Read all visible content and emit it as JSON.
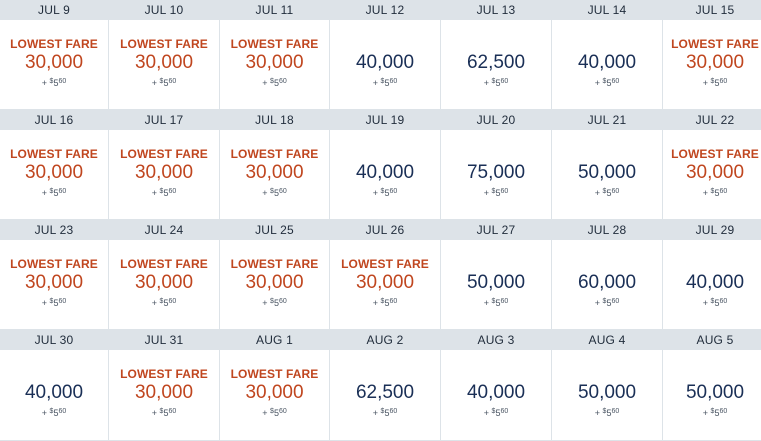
{
  "calendar": {
    "days": [
      {
        "date": "JUL 9",
        "tag": "LOWEST FARE",
        "miles": "30,000",
        "plus": "+",
        "dollar": "$",
        "fee_whole": "5",
        "fee_cents": "60",
        "lowest": true
      },
      {
        "date": "JUL 10",
        "tag": "LOWEST FARE",
        "miles": "30,000",
        "plus": "+",
        "dollar": "$",
        "fee_whole": "5",
        "fee_cents": "60",
        "lowest": true
      },
      {
        "date": "JUL 11",
        "tag": "LOWEST FARE",
        "miles": "30,000",
        "plus": "+",
        "dollar": "$",
        "fee_whole": "5",
        "fee_cents": "60",
        "lowest": true
      },
      {
        "date": "JUL 12",
        "tag": "",
        "miles": "40,000",
        "plus": "+",
        "dollar": "$",
        "fee_whole": "5",
        "fee_cents": "60",
        "lowest": false
      },
      {
        "date": "JUL 13",
        "tag": "",
        "miles": "62,500",
        "plus": "+",
        "dollar": "$",
        "fee_whole": "5",
        "fee_cents": "60",
        "lowest": false
      },
      {
        "date": "JUL 14",
        "tag": "",
        "miles": "40,000",
        "plus": "+",
        "dollar": "$",
        "fee_whole": "5",
        "fee_cents": "60",
        "lowest": false
      },
      {
        "date": "JUL 15",
        "tag": "LOWEST FARE",
        "miles": "30,000",
        "plus": "+",
        "dollar": "$",
        "fee_whole": "5",
        "fee_cents": "60",
        "lowest": true
      },
      {
        "date": "JUL 16",
        "tag": "LOWEST FARE",
        "miles": "30,000",
        "plus": "+",
        "dollar": "$",
        "fee_whole": "5",
        "fee_cents": "60",
        "lowest": true
      },
      {
        "date": "JUL 17",
        "tag": "LOWEST FARE",
        "miles": "30,000",
        "plus": "+",
        "dollar": "$",
        "fee_whole": "5",
        "fee_cents": "60",
        "lowest": true
      },
      {
        "date": "JUL 18",
        "tag": "LOWEST FARE",
        "miles": "30,000",
        "plus": "+",
        "dollar": "$",
        "fee_whole": "5",
        "fee_cents": "60",
        "lowest": true
      },
      {
        "date": "JUL 19",
        "tag": "",
        "miles": "40,000",
        "plus": "+",
        "dollar": "$",
        "fee_whole": "5",
        "fee_cents": "60",
        "lowest": false
      },
      {
        "date": "JUL 20",
        "tag": "",
        "miles": "75,000",
        "plus": "+",
        "dollar": "$",
        "fee_whole": "5",
        "fee_cents": "60",
        "lowest": false
      },
      {
        "date": "JUL 21",
        "tag": "",
        "miles": "50,000",
        "plus": "+",
        "dollar": "$",
        "fee_whole": "5",
        "fee_cents": "60",
        "lowest": false
      },
      {
        "date": "JUL 22",
        "tag": "LOWEST FARE",
        "miles": "30,000",
        "plus": "+",
        "dollar": "$",
        "fee_whole": "5",
        "fee_cents": "60",
        "lowest": true
      },
      {
        "date": "JUL 23",
        "tag": "LOWEST FARE",
        "miles": "30,000",
        "plus": "+",
        "dollar": "$",
        "fee_whole": "5",
        "fee_cents": "60",
        "lowest": true
      },
      {
        "date": "JUL 24",
        "tag": "LOWEST FARE",
        "miles": "30,000",
        "plus": "+",
        "dollar": "$",
        "fee_whole": "5",
        "fee_cents": "60",
        "lowest": true
      },
      {
        "date": "JUL 25",
        "tag": "LOWEST FARE",
        "miles": "30,000",
        "plus": "+",
        "dollar": "$",
        "fee_whole": "5",
        "fee_cents": "60",
        "lowest": true
      },
      {
        "date": "JUL 26",
        "tag": "LOWEST FARE",
        "miles": "30,000",
        "plus": "+",
        "dollar": "$",
        "fee_whole": "5",
        "fee_cents": "60",
        "lowest": true
      },
      {
        "date": "JUL 27",
        "tag": "",
        "miles": "50,000",
        "plus": "+",
        "dollar": "$",
        "fee_whole": "5",
        "fee_cents": "60",
        "lowest": false
      },
      {
        "date": "JUL 28",
        "tag": "",
        "miles": "60,000",
        "plus": "+",
        "dollar": "$",
        "fee_whole": "5",
        "fee_cents": "60",
        "lowest": false
      },
      {
        "date": "JUL 29",
        "tag": "",
        "miles": "40,000",
        "plus": "+",
        "dollar": "$",
        "fee_whole": "5",
        "fee_cents": "60",
        "lowest": false
      },
      {
        "date": "JUL 30",
        "tag": "",
        "miles": "40,000",
        "plus": "+",
        "dollar": "$",
        "fee_whole": "5",
        "fee_cents": "60",
        "lowest": false
      },
      {
        "date": "JUL 31",
        "tag": "LOWEST FARE",
        "miles": "30,000",
        "plus": "+",
        "dollar": "$",
        "fee_whole": "5",
        "fee_cents": "60",
        "lowest": true
      },
      {
        "date": "AUG 1",
        "tag": "LOWEST FARE",
        "miles": "30,000",
        "plus": "+",
        "dollar": "$",
        "fee_whole": "5",
        "fee_cents": "60",
        "lowest": true
      },
      {
        "date": "AUG 2",
        "tag": "",
        "miles": "62,500",
        "plus": "+",
        "dollar": "$",
        "fee_whole": "5",
        "fee_cents": "60",
        "lowest": false
      },
      {
        "date": "AUG 3",
        "tag": "",
        "miles": "40,000",
        "plus": "+",
        "dollar": "$",
        "fee_whole": "5",
        "fee_cents": "60",
        "lowest": false
      },
      {
        "date": "AUG 4",
        "tag": "",
        "miles": "50,000",
        "plus": "+",
        "dollar": "$",
        "fee_whole": "5",
        "fee_cents": "60",
        "lowest": false
      },
      {
        "date": "AUG 5",
        "tag": "",
        "miles": "50,000",
        "plus": "+",
        "dollar": "$",
        "fee_whole": "5",
        "fee_cents": "60",
        "lowest": false
      }
    ]
  },
  "colors": {
    "lowest_fare": "#c0461f",
    "regular_fare": "#1a2f56",
    "header_bg": "#dde3e8"
  }
}
